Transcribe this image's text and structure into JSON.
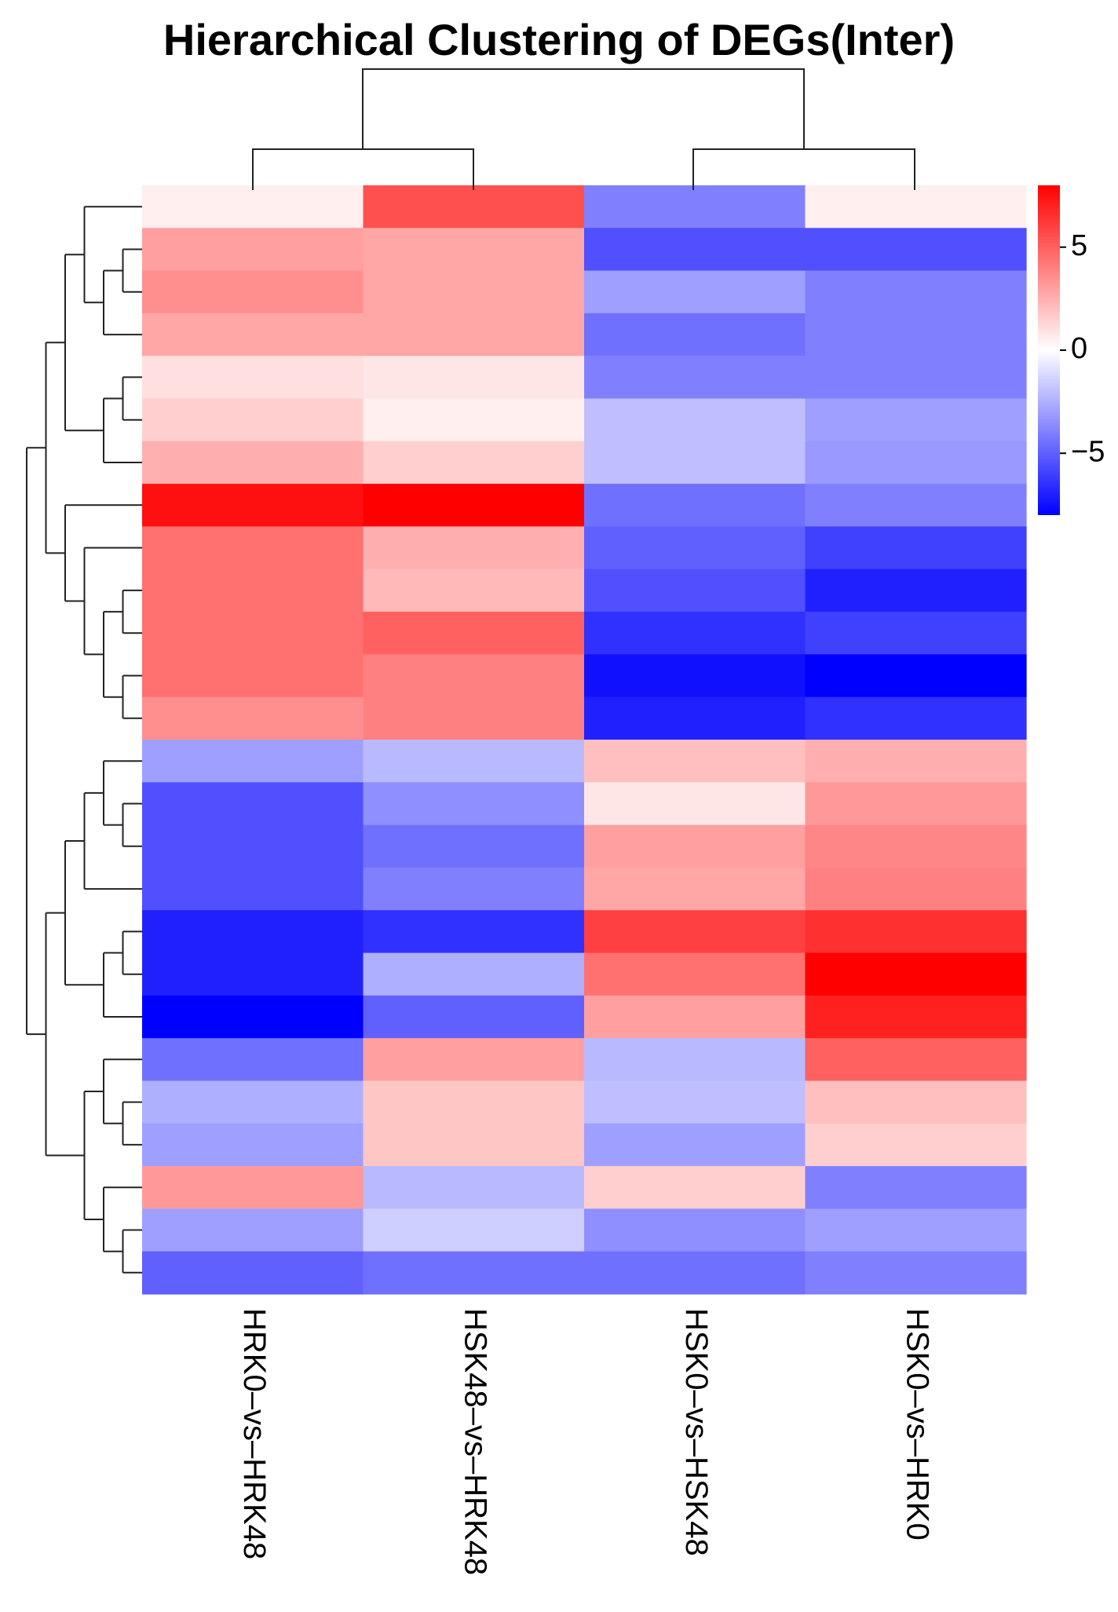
{
  "chart_data": {
    "type": "heatmap",
    "title": "Hierarchical Clustering of DEGs(Inter)",
    "columns": [
      "HRK0–vs–HRK48",
      "HSK48–vs–HRK48",
      "HSK0–vs–HSK48",
      "HSK0–vs–HRK0"
    ],
    "values": [
      [
        0.5,
        5.5,
        -4.0,
        0.5
      ],
      [
        3.0,
        2.8,
        -5.5,
        -5.5
      ],
      [
        3.5,
        2.8,
        -3.0,
        -4.0
      ],
      [
        2.8,
        2.8,
        -4.5,
        -4.0
      ],
      [
        1.0,
        0.8,
        -4.0,
        -4.0
      ],
      [
        1.5,
        0.5,
        -2.0,
        -3.0
      ],
      [
        2.5,
        1.5,
        -2.0,
        -3.2
      ],
      [
        7.5,
        8.0,
        -4.5,
        -4.0
      ],
      [
        4.5,
        2.5,
        -5.0,
        -6.0
      ],
      [
        4.5,
        2.2,
        -5.5,
        -7.0
      ],
      [
        4.5,
        5.0,
        -6.5,
        -6.0
      ],
      [
        4.5,
        4.0,
        -7.5,
        -8.0
      ],
      [
        3.5,
        4.0,
        -7.0,
        -6.5
      ],
      [
        -3.0,
        -2.2,
        2.0,
        2.5
      ],
      [
        -5.5,
        -3.5,
        0.8,
        3.2
      ],
      [
        -5.5,
        -4.5,
        3.0,
        3.8
      ],
      [
        -5.5,
        -4.0,
        2.8,
        4.0
      ],
      [
        -7.0,
        -6.5,
        6.0,
        6.5
      ],
      [
        -7.0,
        -2.5,
        4.5,
        8.0
      ],
      [
        -8.0,
        -5.0,
        3.0,
        7.0
      ],
      [
        -4.5,
        3.0,
        -2.2,
        5.0
      ],
      [
        -2.5,
        1.8,
        -2.0,
        2.0
      ],
      [
        -3.0,
        1.8,
        -3.0,
        1.5
      ],
      [
        3.2,
        -2.2,
        1.5,
        -4.0
      ],
      [
        -3.0,
        -1.5,
        -3.5,
        -3.0
      ],
      [
        -5.0,
        -4.5,
        -4.5,
        -4.0
      ]
    ],
    "colorbar": {
      "ticks": [
        5,
        0,
        -5
      ],
      "tick_labels": [
        "5",
        "0",
        "−5"
      ],
      "range": [
        -8,
        8
      ]
    },
    "colors": {
      "low": "#0000ff",
      "mid": "#ffffff",
      "high": "#ff0000"
    },
    "column_dendrogram": "((HRK0–vs–HRK48,HSK48–vs–HRK48),(HSK0–vs–HSK48,HSK0–vs–HRK0))",
    "row_dendrogram": "((((0,((1,2),3)),((4,5),6)),(7,(8,((9,10),(11,12))))),((((13,(14,15)),16),(((17,18),19))),(((20,(21,22)),(23,(24,25))))))"
  }
}
